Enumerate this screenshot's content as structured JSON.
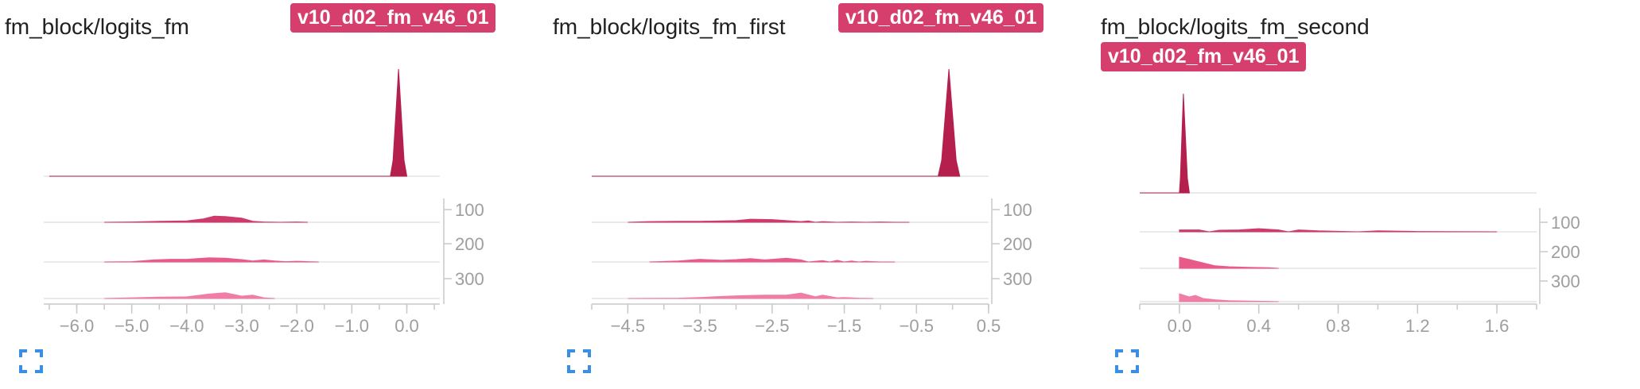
{
  "colors": {
    "accent": "#d63f6d",
    "step0": "#b51f4e",
    "step100": "#cd3b6b",
    "step200": "#e85a88",
    "step300": "#f07da6",
    "axis": "#c9c9c9",
    "tick_text": "#9e9e9e",
    "expand_icon": "#3a8ee6"
  },
  "panels": [
    {
      "title": "fm_block/logits_fm",
      "run_tag": "v10_d02_fm_v46_01",
      "expand_icon": "fullscreen-icon",
      "chart_data": {
        "type": "area",
        "xlim": [
          -6.6,
          0.6
        ],
        "x_ticks": [
          -6.0,
          -5.0,
          -4.0,
          -3.0,
          -2.0,
          -1.0,
          0.0
        ],
        "x_tick_labels": [
          "−6.0",
          "−5.0",
          "−4.0",
          "−3.0",
          "−2.0",
          "−1.0",
          "0.0"
        ],
        "y_tick_labels": [
          "100",
          "200",
          "300"
        ],
        "series": [
          {
            "step": 0,
            "x": [
              -6.5,
              -0.3,
              -0.25,
              -0.15,
              -0.05,
              0.0
            ],
            "y": [
              0.0,
              0.0,
              0.15,
              1.0,
              0.15,
              0.0
            ]
          },
          {
            "step": 100,
            "x": [
              -5.5,
              -5.0,
              -4.5,
              -4.0,
              -3.7,
              -3.5,
              -3.3,
              -3.0,
              -2.8,
              -2.6,
              -2.3,
              -2.0,
              -1.8
            ],
            "y": [
              0.0,
              0.01,
              0.03,
              0.04,
              0.1,
              0.18,
              0.17,
              0.12,
              0.03,
              0.01,
              0.0,
              0.01,
              0.0
            ]
          },
          {
            "step": 200,
            "x": [
              -5.5,
              -5.0,
              -4.6,
              -4.3,
              -4.0,
              -3.6,
              -3.3,
              -3.0,
              -2.8,
              -2.6,
              -2.4,
              -2.2,
              -2.0,
              -1.8,
              -1.6
            ],
            "y": [
              0.0,
              0.01,
              0.06,
              0.08,
              0.08,
              0.12,
              0.11,
              0.07,
              0.03,
              0.06,
              0.03,
              0.01,
              0.02,
              0.01,
              0.0
            ]
          },
          {
            "step": 300,
            "x": [
              -5.5,
              -5.0,
              -4.5,
              -4.0,
              -3.6,
              -3.3,
              -3.0,
              -2.8,
              -2.6,
              -2.4
            ],
            "y": [
              0.0,
              0.02,
              0.04,
              0.05,
              0.13,
              0.17,
              0.07,
              0.1,
              0.02,
              0.0
            ]
          }
        ]
      }
    },
    {
      "title": "fm_block/logits_fm_first",
      "run_tag": "v10_d02_fm_v46_01",
      "expand_icon": "fullscreen-icon",
      "chart_data": {
        "type": "area",
        "xlim": [
          -5.0,
          0.5
        ],
        "x_ticks": [
          -4.5,
          -3.5,
          -2.5,
          -1.5,
          -0.5,
          0.5
        ],
        "x_tick_labels": [
          "−4.5",
          "−3.5",
          "−2.5",
          "−1.5",
          "−0.5",
          "0.5"
        ],
        "y_tick_labels": [
          "100",
          "200",
          "300"
        ],
        "series": [
          {
            "step": 0,
            "x": [
              -5.0,
              -0.2,
              -0.15,
              -0.05,
              0.05,
              0.1
            ],
            "y": [
              0.0,
              0.0,
              0.15,
              1.0,
              0.15,
              0.0
            ]
          },
          {
            "step": 100,
            "x": [
              -4.5,
              -4.2,
              -3.8,
              -3.5,
              -3.2,
              -3.0,
              -2.8,
              -2.5,
              -2.3,
              -2.1,
              -2.0,
              -1.9,
              -1.8,
              -1.6,
              -1.4,
              -1.2,
              -1.0,
              -0.8,
              -0.6
            ],
            "y": [
              0.0,
              0.02,
              0.03,
              0.03,
              0.04,
              0.05,
              0.09,
              0.08,
              0.05,
              0.02,
              0.04,
              0.0,
              0.02,
              0.0,
              0.01,
              0.0,
              0.01,
              0.0,
              0.0
            ]
          },
          {
            "step": 200,
            "x": [
              -4.2,
              -3.8,
              -3.5,
              -3.2,
              -3.0,
              -2.8,
              -2.6,
              -2.3,
              -2.1,
              -2.0,
              -1.8,
              -1.7,
              -1.6,
              -1.5,
              -1.4,
              -1.3,
              -1.2,
              -1.1,
              -1.0,
              -0.8
            ],
            "y": [
              0.0,
              0.03,
              0.08,
              0.05,
              0.07,
              0.1,
              0.06,
              0.11,
              0.06,
              0.0,
              0.04,
              0.0,
              0.05,
              0.0,
              0.03,
              0.0,
              0.02,
              0.01,
              0.0,
              0.0
            ]
          },
          {
            "step": 300,
            "x": [
              -4.5,
              -3.8,
              -3.5,
              -3.2,
              -3.0,
              -2.8,
              -2.6,
              -2.3,
              -2.1,
              -1.9,
              -1.8,
              -1.6,
              -1.5,
              -1.3,
              -1.1
            ],
            "y": [
              0.0,
              0.01,
              0.03,
              0.06,
              0.08,
              0.09,
              0.1,
              0.1,
              0.16,
              0.05,
              0.1,
              0.02,
              0.03,
              0.01,
              0.0
            ]
          }
        ]
      }
    },
    {
      "title": "fm_block/logits_fm_second",
      "run_tag": "v10_d02_fm_v46_01",
      "expand_icon": "fullscreen-icon",
      "chart_data": {
        "type": "area",
        "xlim": [
          -0.2,
          1.8
        ],
        "x_ticks": [
          0.0,
          0.4,
          0.8,
          1.2,
          1.6
        ],
        "x_tick_labels": [
          "0.0",
          "0.4",
          "0.8",
          "1.2",
          "1.6"
        ],
        "y_tick_labels": [
          "100",
          "200",
          "300"
        ],
        "series": [
          {
            "step": 0,
            "x": [
              -0.2,
              0.0,
              0.005,
              0.02,
              0.04,
              0.05
            ],
            "y": [
              0.0,
              0.0,
              0.15,
              1.0,
              0.15,
              0.0
            ]
          },
          {
            "step": 100,
            "x": [
              0.0,
              0.1,
              0.15,
              0.2,
              0.3,
              0.4,
              0.5,
              0.55,
              0.6,
              0.7,
              0.9,
              1.0,
              1.2,
              1.6
            ],
            "y": [
              0.06,
              0.06,
              0.0,
              0.05,
              0.06,
              0.1,
              0.06,
              0.0,
              0.06,
              0.03,
              0.0,
              0.03,
              0.01,
              0.0
            ]
          },
          {
            "step": 200,
            "x": [
              0.0,
              0.05,
              0.1,
              0.18,
              0.25,
              0.35,
              0.45,
              0.5
            ],
            "y": [
              0.35,
              0.28,
              0.2,
              0.08,
              0.05,
              0.03,
              0.02,
              0.0
            ]
          },
          {
            "step": 300,
            "x": [
              0.0,
              0.05,
              0.08,
              0.12,
              0.18,
              0.25,
              0.35,
              0.45,
              0.5
            ],
            "y": [
              0.25,
              0.15,
              0.2,
              0.1,
              0.06,
              0.03,
              0.02,
              0.01,
              0.0
            ]
          }
        ]
      }
    }
  ]
}
